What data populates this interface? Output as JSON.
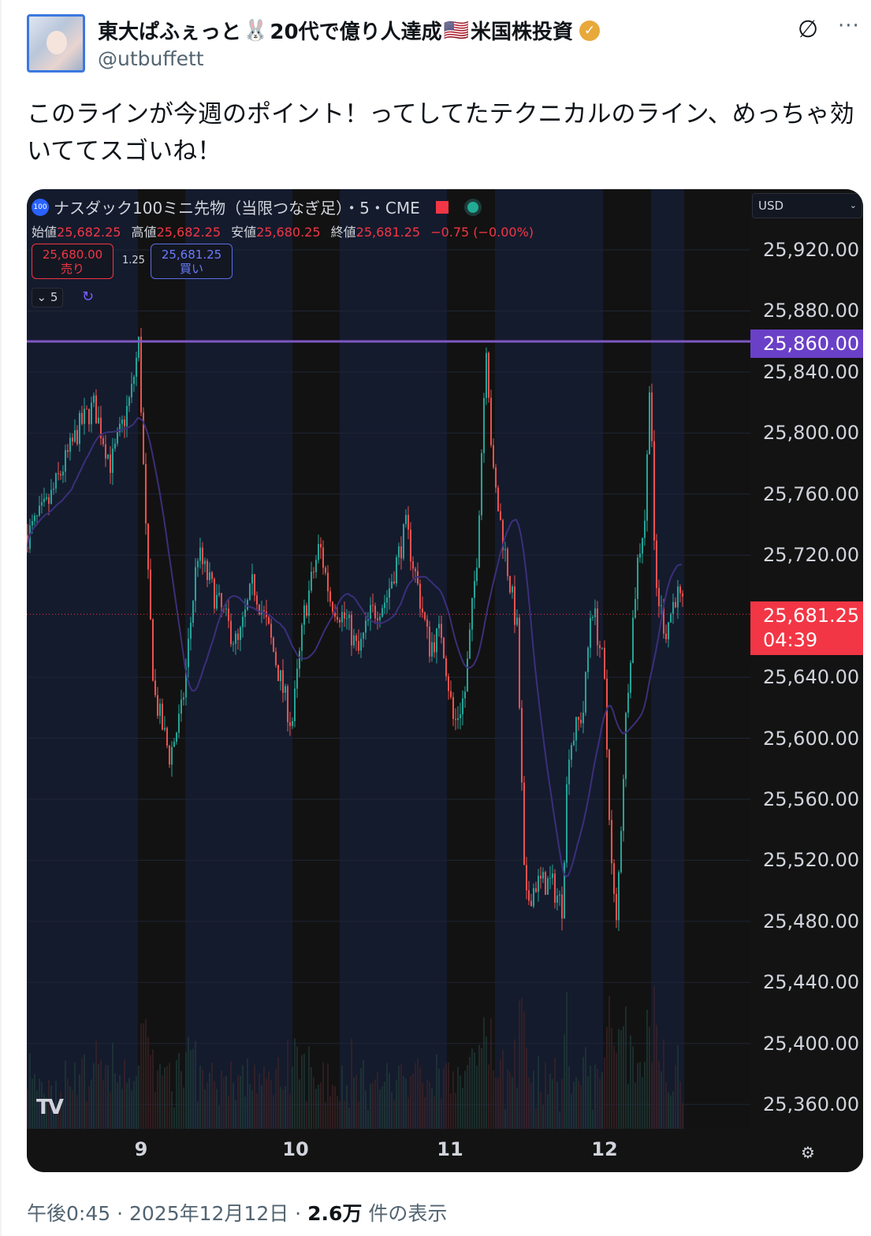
{
  "tweet": {
    "author_name": "東大ぱふぇっと",
    "author_name_mid": "20代で億り人達成",
    "author_name_end": "米国株投資",
    "emoji_rabbit": "🐰",
    "emoji_flag": "🇺🇸",
    "verified": true,
    "handle": "@utbuffett",
    "text": "このラインが今週のポイント！ってしてたテクニカルのライン、めっちゃ効いててスゴいね！",
    "time": "午後0:45",
    "date": "2025年12月12日",
    "views_count": "2.6万",
    "views_label": "件の表示",
    "sep": " · "
  },
  "chart": {
    "symbol_badge": "100",
    "title": "ナスダック100ミニ先物（当限つなぎ足）・5・CME",
    "ohlc": [
      {
        "label": "始値",
        "value": "25,682.25"
      },
      {
        "label": "高値",
        "value": "25,682.25"
      },
      {
        "label": "安値",
        "value": "25,680.25"
      },
      {
        "label": "終値",
        "value": "25,681.25"
      }
    ],
    "change": "−0.75 (−0.00%)",
    "sell_price": "25,680.00",
    "sell_label": "売り",
    "spread": "1.25",
    "buy_price": "25,681.25",
    "buy_label": "買い",
    "interval": "5",
    "currency": "USD",
    "price_ticks": [
      "25,920.00",
      "25,880.00",
      "25,840.00",
      "25,800.00",
      "25,760.00",
      "25,720.00",
      "25,640.00",
      "25,600.00",
      "25,560.00",
      "25,520.00",
      "25,480.00",
      "25,440.00",
      "25,400.00",
      "25,360.00"
    ],
    "horizontal_line": "25,860.00",
    "last_price": "25,681.25",
    "countdown": "04:39",
    "day_labels": [
      "9",
      "10",
      "11",
      "12"
    ],
    "colors": {
      "up": "#26a69a",
      "down": "#ef5350",
      "line": "#7e57c2",
      "last": "#f23645",
      "background": "#131722"
    }
  },
  "chart_data": {
    "type": "candlestick",
    "x_unit": "day of month",
    "ylim": [
      25340,
      25940
    ],
    "level_line": 25860,
    "last": 25681.25,
    "path": [
      [
        8.26,
        25733
      ],
      [
        8.39,
        25753
      ],
      [
        8.6,
        25805
      ],
      [
        8.69,
        25818
      ],
      [
        8.8,
        25779
      ],
      [
        8.93,
        25825
      ],
      [
        8.98,
        25859
      ],
      [
        9.03,
        25722
      ],
      [
        9.08,
        25629
      ],
      [
        9.18,
        25588
      ],
      [
        9.26,
        25619
      ],
      [
        9.36,
        25722
      ],
      [
        9.46,
        25696
      ],
      [
        9.62,
        25660
      ],
      [
        9.72,
        25702
      ],
      [
        9.82,
        25670
      ],
      [
        9.97,
        25608
      ],
      [
        10.05,
        25681
      ],
      [
        10.15,
        25727
      ],
      [
        10.22,
        25691
      ],
      [
        10.33,
        25676
      ],
      [
        10.4,
        25655
      ],
      [
        10.48,
        25681
      ],
      [
        10.58,
        25691
      ],
      [
        10.71,
        25738
      ],
      [
        10.78,
        25702
      ],
      [
        10.86,
        25660
      ],
      [
        10.94,
        25670
      ],
      [
        11.02,
        25608
      ],
      [
        11.09,
        25629
      ],
      [
        11.17,
        25722
      ],
      [
        11.23,
        25862
      ],
      [
        11.27,
        25774
      ],
      [
        11.35,
        25722
      ],
      [
        11.43,
        25670
      ],
      [
        11.48,
        25490
      ],
      [
        11.55,
        25505
      ],
      [
        11.65,
        25505
      ],
      [
        11.72,
        25490
      ],
      [
        11.76,
        25593
      ],
      [
        11.86,
        25619
      ],
      [
        11.91,
        25691
      ],
      [
        11.99,
        25645
      ],
      [
        12.04,
        25516
      ],
      [
        12.07,
        25474
      ],
      [
        12.14,
        25629
      ],
      [
        12.21,
        25717
      ],
      [
        12.26,
        25748
      ],
      [
        12.29,
        25851
      ],
      [
        12.32,
        25702
      ],
      [
        12.39,
        25670
      ],
      [
        12.46,
        25696
      ],
      [
        12.51,
        25681
      ]
    ]
  }
}
